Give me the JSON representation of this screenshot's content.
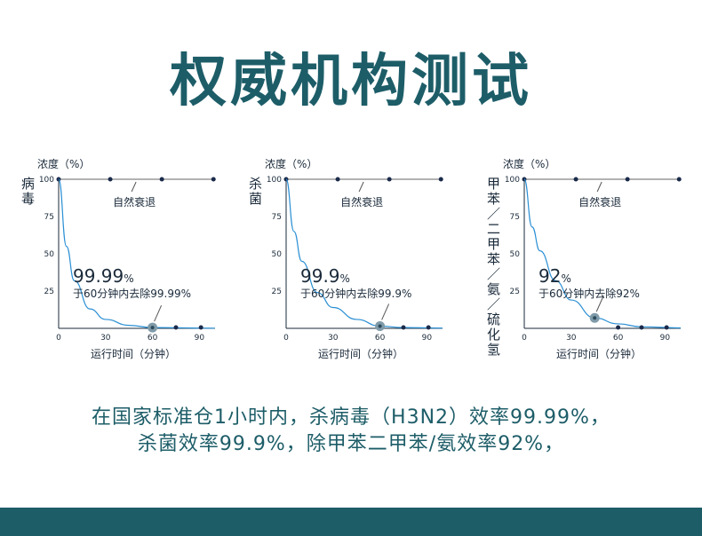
{
  "title": "权威机构测试",
  "colors": {
    "title": "#1d5d68",
    "curve": "#2a8fd4",
    "axis": "#1a2a3a",
    "marker": "#7f9aa8",
    "footer": "#1d5d68"
  },
  "chart_data": [
    {
      "type": "line",
      "ylabel": "浓度（%）",
      "xlabel": "运行时间（分钟）",
      "side_label": "病毒",
      "xlim": [
        0,
        100
      ],
      "ylim": [
        0,
        100
      ],
      "yticks": [
        25,
        50,
        75,
        100
      ],
      "xticks": [
        0,
        30,
        60,
        90
      ],
      "baseline_label": "自然衰退",
      "baseline_value": 100,
      "baseline_x": [
        0,
        33,
        66,
        99
      ],
      "curve_points": [
        [
          0,
          100
        ],
        [
          5,
          55
        ],
        [
          10,
          32
        ],
        [
          20,
          13
        ],
        [
          30,
          6
        ],
        [
          45,
          2
        ],
        [
          60,
          0.5
        ],
        [
          100,
          0.1
        ]
      ],
      "bottom_dots_x": [
        60,
        75,
        91
      ],
      "highlight": {
        "x": 60,
        "y": 0.5
      },
      "annotation_value": "99.99",
      "annotation_unit": "%",
      "annotation_text": "于60分钟内去除99.99%"
    },
    {
      "type": "line",
      "ylabel": "浓度（%）",
      "xlabel": "运行时间（分钟）",
      "side_label": "杀菌",
      "xlim": [
        0,
        100
      ],
      "ylim": [
        0,
        100
      ],
      "yticks": [
        25,
        50,
        75,
        100
      ],
      "xticks": [
        0,
        30,
        60,
        90
      ],
      "baseline_label": "自然衰退",
      "baseline_value": 100,
      "baseline_x": [
        0,
        33,
        66,
        99
      ],
      "curve_points": [
        [
          0,
          100
        ],
        [
          5,
          65
        ],
        [
          10,
          45
        ],
        [
          20,
          24
        ],
        [
          30,
          14
        ],
        [
          45,
          6
        ],
        [
          60,
          1.5
        ],
        [
          75,
          0.5
        ],
        [
          100,
          0.2
        ]
      ],
      "bottom_dots_x": [
        60,
        75,
        91
      ],
      "highlight": {
        "x": 60,
        "y": 1.5
      },
      "annotation_value": "99.9",
      "annotation_unit": "%",
      "annotation_text": "于60分钟内去除99.9%"
    },
    {
      "type": "line",
      "ylabel": "浓度（%）",
      "xlabel": "运行时间（分钟）",
      "side_label": "甲苯／二甲苯／氨／硫化氢",
      "xlim": [
        0,
        100
      ],
      "ylim": [
        0,
        100
      ],
      "yticks": [
        25,
        50,
        75,
        100
      ],
      "xticks": [
        0,
        30,
        60,
        90
      ],
      "baseline_label": "自然衰退",
      "baseline_value": 100,
      "baseline_x": [
        0,
        33,
        66,
        99
      ],
      "curve_points": [
        [
          0,
          100
        ],
        [
          5,
          68
        ],
        [
          10,
          52
        ],
        [
          20,
          32
        ],
        [
          30,
          19
        ],
        [
          45,
          7
        ],
        [
          60,
          3
        ],
        [
          75,
          1
        ],
        [
          100,
          0.3
        ]
      ],
      "bottom_dots_x": [
        60,
        75,
        91
      ],
      "highlight": {
        "x": 45,
        "y": 7
      },
      "annotation_value": "92",
      "annotation_unit": "%",
      "annotation_text": "于60分钟内去除92%"
    }
  ],
  "caption": {
    "line1": "在国家标准仓1小时内，杀病毒（H3N2）效率99.99%，",
    "line2": "杀菌效率99.9%，除甲苯二甲苯/氨效率92%，"
  }
}
